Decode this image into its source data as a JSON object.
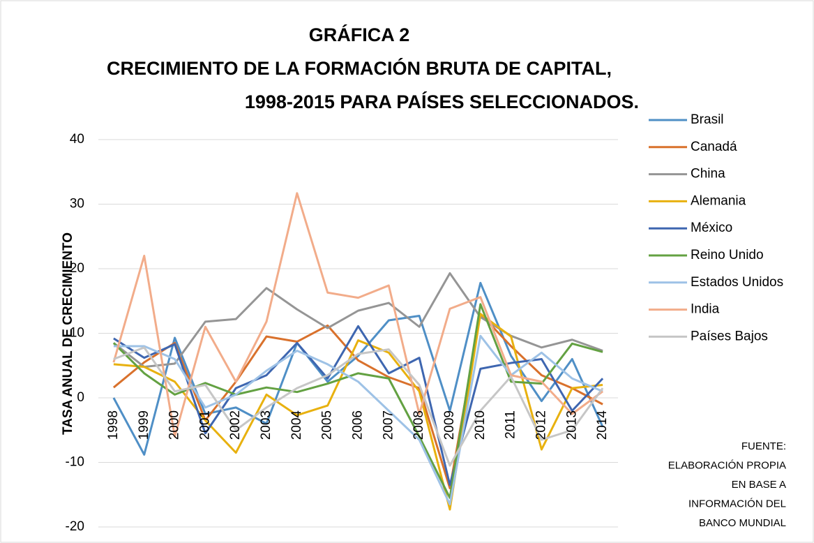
{
  "chart_data": {
    "type": "line",
    "title": [
      "GRÁFICA 2",
      "CRECIMIENTO DE LA FORMACIÓN BRUTA DE CAPITAL,",
      "1998-2015 PARA PAÍSES SELECCIONADOS."
    ],
    "y_label": "TASA ANUAL DE CRECIMIENTO",
    "source": [
      "FUENTE:",
      "ELABORACIÓN PROPIA",
      "EN BASE A",
      "INFORMACIÓN DEL",
      "BANCO MUNDIAL"
    ],
    "categories": [
      "1998",
      "1999",
      "2000",
      "2001",
      "2002",
      "2003",
      "2004",
      "2005",
      "2006",
      "2007",
      "2008",
      "2009",
      "2010",
      "2011",
      "2012",
      "2013",
      "2014"
    ],
    "ylim": [
      -20,
      40
    ],
    "yticks": [
      -20,
      -10,
      0,
      10,
      20,
      30,
      40
    ],
    "grid": true,
    "legend": "right",
    "series": [
      {
        "name": "Brasil",
        "color": "#4f8fc6",
        "values": [
          0,
          -8.8,
          9.3,
          -2.5,
          -1.5,
          -4,
          8.5,
          2.5,
          6.5,
          12,
          12.7,
          -2,
          17.8,
          6.5,
          -0.5,
          6,
          -4.5
        ]
      },
      {
        "name": "Canadá",
        "color": "#d9712c",
        "values": [
          1.6,
          5.5,
          8.5,
          -3.5,
          2.5,
          9.5,
          8.7,
          11.2,
          5.8,
          3.2,
          1.5,
          -14,
          13,
          8,
          3.5,
          1.5,
          -1
        ]
      },
      {
        "name": "China",
        "color": "#959595",
        "values": [
          8.5,
          4.8,
          5.3,
          11.8,
          12.2,
          17,
          13.7,
          10.8,
          13.5,
          14.7,
          11,
          19.3,
          12.5,
          9.6,
          7.8,
          9,
          7.3
        ]
      },
      {
        "name": "Alemania",
        "color": "#e8b10f",
        "values": [
          5.2,
          4.8,
          2.5,
          -3.5,
          -8.5,
          0.5,
          -2.7,
          -1.2,
          8.9,
          7,
          1,
          -17.3,
          13,
          9.5,
          -8,
          1.5,
          2
        ]
      },
      {
        "name": "México",
        "color": "#3e66b0",
        "values": [
          9.2,
          6.2,
          8.3,
          -5.5,
          1.5,
          3.5,
          8.5,
          3,
          11.1,
          3.8,
          6.2,
          -13.5,
          4.5,
          5.4,
          6,
          -2,
          3
        ]
      },
      {
        "name": "Reino Unido",
        "color": "#63a142",
        "values": [
          8.5,
          3.8,
          0.5,
          2.3,
          0.5,
          1.6,
          0.9,
          2.2,
          3.8,
          3,
          -6,
          -15.5,
          14.5,
          2.5,
          2.2,
          8.4,
          7.1
        ]
      },
      {
        "name": "Estados Unidos",
        "color": "#9ec2e6",
        "values": [
          8,
          8,
          6,
          -1.5,
          0.5,
          4.2,
          7.3,
          5.2,
          2.5,
          -2,
          -6.5,
          -16.5,
          9.6,
          3.5,
          7,
          3,
          1
        ]
      },
      {
        "name": "India",
        "color": "#f2ac8a",
        "values": [
          5.5,
          22,
          -6,
          11,
          2.5,
          11.8,
          31.7,
          16.3,
          15.5,
          17.4,
          -2.5,
          13.8,
          15.6,
          3.5,
          2.5,
          -2.5,
          1
        ]
      },
      {
        "name": "Países Bajos",
        "color": "#c6c6c6",
        "values": [
          6,
          7.8,
          1,
          2,
          -5,
          -1.5,
          1.5,
          3.5,
          6.8,
          7.5,
          2,
          -10.5,
          -2,
          3.3,
          -6.5,
          -5,
          1.5
        ]
      }
    ]
  }
}
